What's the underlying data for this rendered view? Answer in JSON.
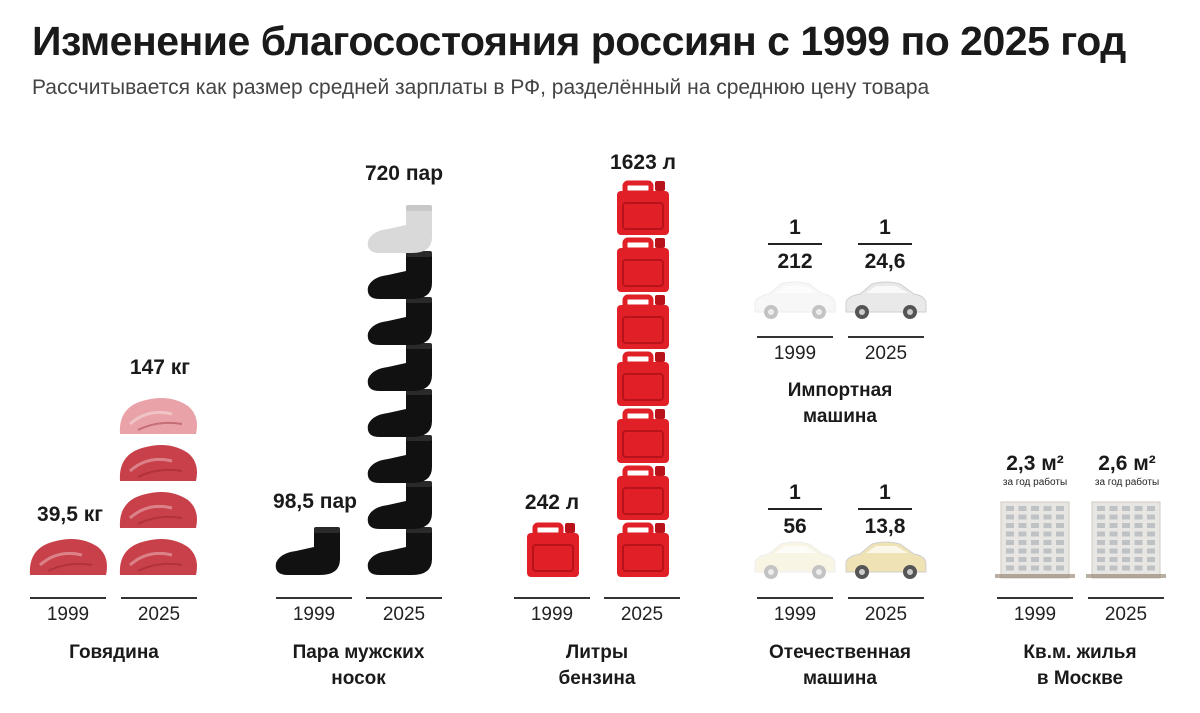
{
  "title": "Изменение благосостояния россиян с 1999 по 2025 год",
  "subtitle": "Рассчитывается как размер средней зарплаты в РФ, разделённый на среднюю цену товара",
  "chart_data": {
    "type": "bar",
    "categories": [
      "1999",
      "2025"
    ],
    "groups": [
      {
        "name": "Говядина",
        "icon": "meat-icon",
        "values": [
          39.5,
          147
        ],
        "labels": [
          "39,5 кг",
          "147 кг"
        ],
        "unit_per_icon": 39.5
      },
      {
        "name": "Пара мужских носок",
        "icon": "sock-icon",
        "values": [
          98.5,
          720
        ],
        "labels": [
          "98,5 пар",
          "720 пар"
        ],
        "unit_per_icon": 98.5
      },
      {
        "name": "Литры бензина",
        "icon": "jerrycan-icon",
        "values": [
          242,
          1623
        ],
        "labels": [
          "242 л",
          "1623 л"
        ],
        "unit_per_icon": 242
      },
      {
        "name": "Импортная машина",
        "icon": "car-icon",
        "values": [
          0.004717,
          0.04065
        ],
        "fractions": [
          {
            "num": "1",
            "den": "212"
          },
          {
            "num": "1",
            "den": "24,6"
          }
        ]
      },
      {
        "name": "Отечественная машина",
        "icon": "car-icon",
        "values": [
          0.01786,
          0.07246
        ],
        "fractions": [
          {
            "num": "1",
            "den": "56"
          },
          {
            "num": "1",
            "den": "13,8"
          }
        ]
      },
      {
        "name": "Кв.м. жилья в Москве",
        "icon": "building-icon",
        "values": [
          2.3,
          2.6
        ],
        "labels": [
          "2,3 м²",
          "2,6 м²"
        ],
        "note": "за год работы"
      }
    ]
  },
  "labels": {
    "year_1999": "1999",
    "year_2025": "2025",
    "beef": "Говядина",
    "socks_1": "Пара мужских",
    "socks_2": "носок",
    "fuel_1": "Литры",
    "fuel_2": "бензина",
    "import_1": "Импортная",
    "import_2": "машина",
    "domestic_1": "Отечественная",
    "domestic_2": "машина",
    "housing_1": "Кв.м. жилья",
    "housing_2": "в Москве"
  },
  "colors": {
    "meat": "#c8404a",
    "meat_light": "#e9a3a8",
    "sock": "#111111",
    "sock_light": "#d9d9d9",
    "jerrycan": "#e01f26",
    "car_import": "#e9e9e9",
    "car_domestic": "#efe3b6",
    "building": "#e8e6e2"
  }
}
